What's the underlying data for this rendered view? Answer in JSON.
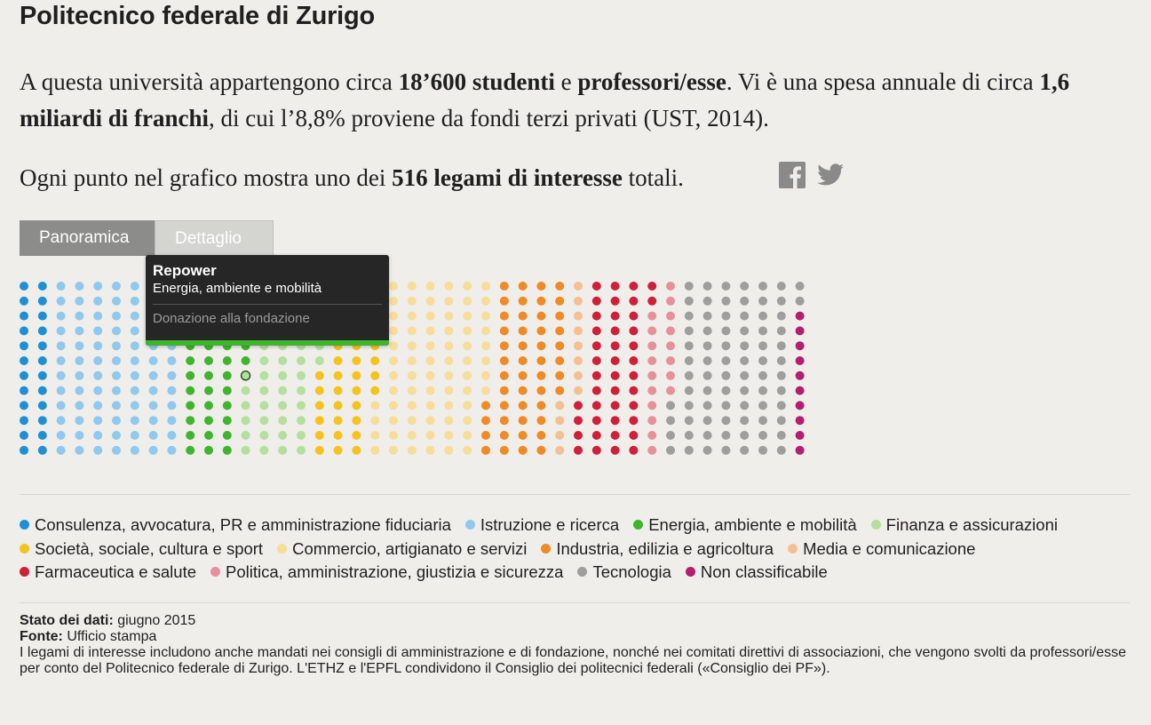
{
  "page_title": "Politecnico federale di Zurigo",
  "intro": {
    "p1": "A questa università appartengono circa ",
    "b1": "18’600 studenti",
    "p2": " e ",
    "b2": "professori/esse",
    "p3": ". Vi è una spesa annuale di circa ",
    "b3": "1,6 miliardi di franchi",
    "p4": ", di cui l’8,8% proviene da fondi terzi privati (UST, 2014)."
  },
  "summary": {
    "p1": "Ogni punto nel grafico mostra uno dei ",
    "b1": "516 legami di interesse",
    "p2": " totali."
  },
  "share": {
    "facebook_icon": "facebook-icon",
    "twitter_icon": "twitter-icon"
  },
  "tabs": [
    {
      "label": "Panoramica",
      "active": true
    },
    {
      "label": "Dettaglio",
      "active": false
    }
  ],
  "tooltip": {
    "name": "Repower",
    "category": "Energia, ambiente e mobilità",
    "type": "Donazione alla fondazione",
    "color": "#3fb52e"
  },
  "chart_data": {
    "type": "dot-matrix",
    "total": 516,
    "rows": 12,
    "categories": [
      {
        "name": "Consulenza, avvocatura, PR e amministrazione fiduciaria",
        "color": "#1e8fd6",
        "count": 24
      },
      {
        "name": "Istruzione e ricerca",
        "color": "#90c8ee",
        "count": 84
      },
      {
        "name": "Energia, ambiente e mobilità",
        "color": "#3fb52e",
        "count": 42
      },
      {
        "name": "Finanza e assicurazioni",
        "color": "#b4df9e",
        "count": 48
      },
      {
        "name": "Società, sociale, cultura e sport",
        "color": "#f6c21d",
        "count": 38
      },
      {
        "name": "Commercio, artigianato e servizi",
        "color": "#f7dc9a",
        "count": 72
      },
      {
        "name": "Industria, edilizia e agricoltura",
        "color": "#f08a24",
        "count": 48
      },
      {
        "name": "Media e comunicazione",
        "color": "#f6bf92",
        "count": 12
      },
      {
        "name": "Farmaceutica e salute",
        "color": "#cf1f3a",
        "count": 42
      },
      {
        "name": "Politica, amministrazione, giustizia e sicurezza",
        "color": "#e8909a",
        "count": 18
      },
      {
        "name": "Tecnologia",
        "color": "#9e9e9c",
        "count": 78
      },
      {
        "name": "Non classificabile",
        "color": "#b31f6e",
        "count": 10
      }
    ],
    "highlighted": {
      "category": "Energia, ambiente e mobilità",
      "index": 42
    }
  },
  "footer": {
    "state_label": "Stato dei dati",
    "state_value": " giugno 2015",
    "source_label": "Fonte",
    "source_value": " Ufficio stampa",
    "note": "I legami di interesse includono anche mandati nei consigli di amministrazione e di fondazione, nonché nei comitati direttivi di associazioni, che vengono svolti da professori/esse per conto del Politecnico federale di Zurigo. L'ETHZ e l'EPFL condividono il Consiglio dei politecnici federali («Consiglio dei PF»)."
  }
}
